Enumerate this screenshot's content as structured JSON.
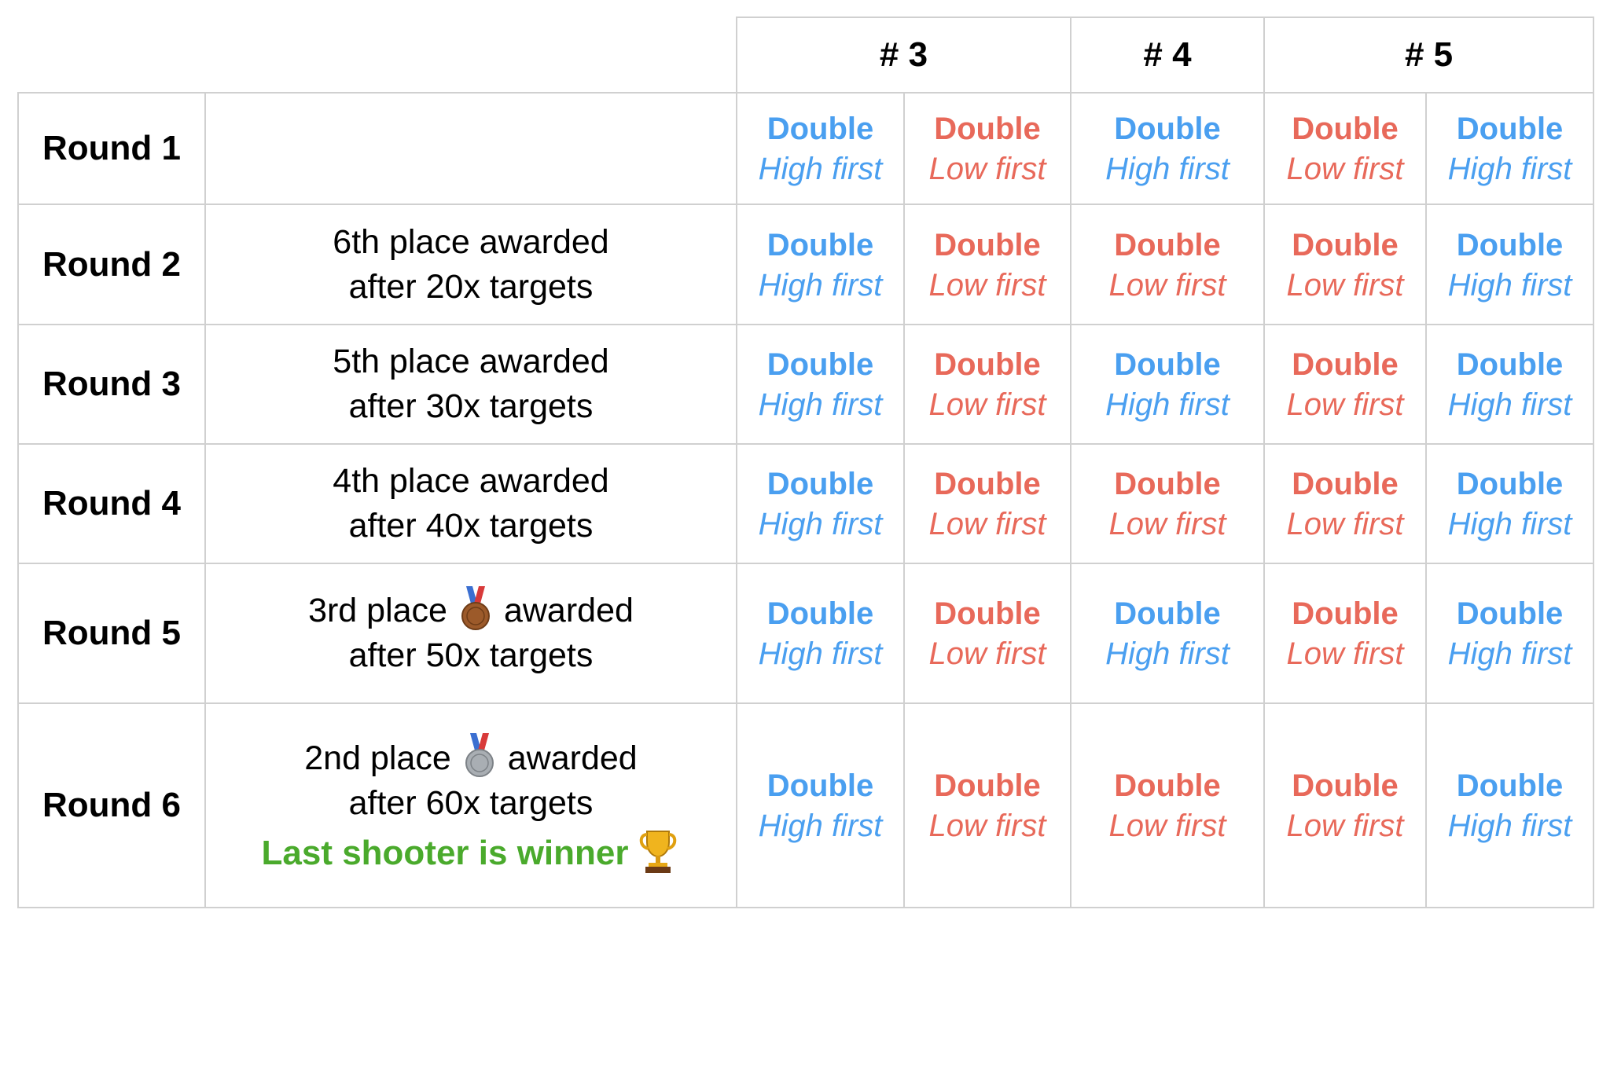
{
  "colors": {
    "high": "#4a9ff0",
    "low": "#e8695a",
    "winner": "#4aaa2c"
  },
  "stations": [
    {
      "label": "# 3",
      "span": 2
    },
    {
      "label": "# 4",
      "span": 1
    },
    {
      "label": "# 5",
      "span": 2
    }
  ],
  "rounds": [
    {
      "label": "Round 1",
      "note": {
        "lines": []
      },
      "cells": [
        {
          "type": "Double",
          "order": "High first",
          "tone": "high"
        },
        {
          "type": "Double",
          "order": "Low first",
          "tone": "low"
        },
        {
          "type": "Double",
          "order": "High first",
          "tone": "high"
        },
        {
          "type": "Double",
          "order": "Low first",
          "tone": "low"
        },
        {
          "type": "Double",
          "order": "High first",
          "tone": "high"
        }
      ]
    },
    {
      "label": "Round 2",
      "note": {
        "lines": [
          "6th place awarded",
          "after 20x targets"
        ]
      },
      "cells": [
        {
          "type": "Double",
          "order": "High first",
          "tone": "high"
        },
        {
          "type": "Double",
          "order": "Low first",
          "tone": "low"
        },
        {
          "type": "Double",
          "order": "Low first",
          "tone": "low"
        },
        {
          "type": "Double",
          "order": "Low first",
          "tone": "low"
        },
        {
          "type": "Double",
          "order": "High first",
          "tone": "high"
        }
      ]
    },
    {
      "label": "Round 3",
      "note": {
        "lines": [
          "5th place awarded",
          "after 30x targets"
        ]
      },
      "cells": [
        {
          "type": "Double",
          "order": "High first",
          "tone": "high"
        },
        {
          "type": "Double",
          "order": "Low first",
          "tone": "low"
        },
        {
          "type": "Double",
          "order": "High first",
          "tone": "high"
        },
        {
          "type": "Double",
          "order": "Low first",
          "tone": "low"
        },
        {
          "type": "Double",
          "order": "High first",
          "tone": "high"
        }
      ]
    },
    {
      "label": "Round 4",
      "note": {
        "lines": [
          "4th place awarded",
          "after 40x targets"
        ]
      },
      "cells": [
        {
          "type": "Double",
          "order": "High first",
          "tone": "high"
        },
        {
          "type": "Double",
          "order": "Low first",
          "tone": "low"
        },
        {
          "type": "Double",
          "order": "Low first",
          "tone": "low"
        },
        {
          "type": "Double",
          "order": "Low first",
          "tone": "low"
        },
        {
          "type": "Double",
          "order": "High first",
          "tone": "high"
        }
      ]
    },
    {
      "label": "Round 5",
      "note": {
        "medal_line": {
          "before": "3rd place",
          "medal": "bronze",
          "medal_number": "3",
          "after": "awarded"
        },
        "lines": [
          "after 50x targets"
        ]
      },
      "cells": [
        {
          "type": "Double",
          "order": "High first",
          "tone": "high"
        },
        {
          "type": "Double",
          "order": "Low first",
          "tone": "low"
        },
        {
          "type": "Double",
          "order": "High first",
          "tone": "high"
        },
        {
          "type": "Double",
          "order": "Low first",
          "tone": "low"
        },
        {
          "type": "Double",
          "order": "High first",
          "tone": "high"
        }
      ]
    },
    {
      "label": "Round 6",
      "note": {
        "medal_line": {
          "before": "2nd place",
          "medal": "silver",
          "medal_number": "2",
          "after": "awarded"
        },
        "lines": [
          "after 60x targets"
        ],
        "winner": "Last shooter is winner",
        "winner_icon": "trophy-icon"
      },
      "cells": [
        {
          "type": "Double",
          "order": "High first",
          "tone": "high"
        },
        {
          "type": "Double",
          "order": "Low first",
          "tone": "low"
        },
        {
          "type": "Double",
          "order": "Low first",
          "tone": "low"
        },
        {
          "type": "Double",
          "order": "Low first",
          "tone": "low"
        },
        {
          "type": "Double",
          "order": "High first",
          "tone": "high"
        }
      ]
    }
  ]
}
